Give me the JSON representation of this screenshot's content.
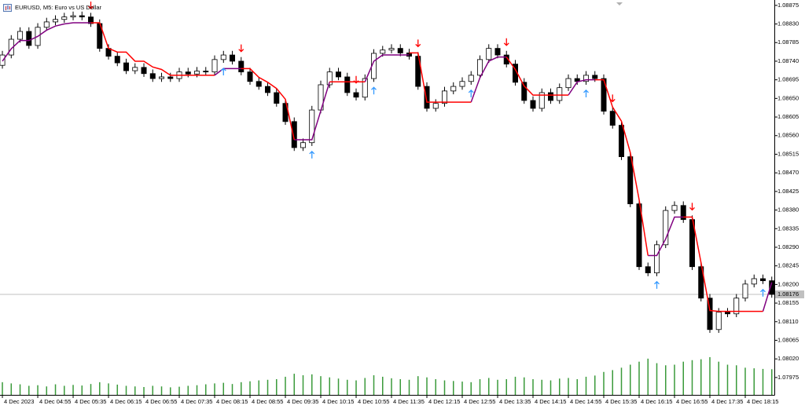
{
  "chart_data": {
    "type": "candlestick",
    "title": "EURUSD, M5: Euro vs US Dollar",
    "xlim": [
      -0.27,
      87.29
    ],
    "ylim": [
      1.07933,
      1.08888
    ],
    "grid": false,
    "xticks": [
      {
        "value": 0,
        "label": "4 Dec 2023"
      },
      {
        "value": 4,
        "label": "4 Dec 04:55"
      },
      {
        "value": 8,
        "label": "4 Dec 05:35"
      },
      {
        "value": 12,
        "label": "4 Dec 06:15"
      },
      {
        "value": 16,
        "label": "4 Dec 06:55"
      },
      {
        "value": 20,
        "label": "4 Dec 07:35"
      },
      {
        "value": 24,
        "label": "4 Dec 08:15"
      },
      {
        "value": 28,
        "label": "4 Dec 08:55"
      },
      {
        "value": 32,
        "label": "4 Dec 09:35"
      },
      {
        "value": 36,
        "label": "4 Dec 10:15"
      },
      {
        "value": 40,
        "label": "4 Dec 10:55"
      },
      {
        "value": 44,
        "label": "4 Dec 11:35"
      },
      {
        "value": 48,
        "label": "4 Dec 12:15"
      },
      {
        "value": 52,
        "label": "4 Dec 12:55"
      },
      {
        "value": 56,
        "label": "4 Dec 13:35"
      },
      {
        "value": 60,
        "label": "4 Dec 14:15"
      },
      {
        "value": 64,
        "label": "4 Dec 14:55"
      },
      {
        "value": 68,
        "label": "4 Dec 15:35"
      },
      {
        "value": 72,
        "label": "4 Dec 16:15"
      },
      {
        "value": 76,
        "label": "4 Dec 16:55"
      },
      {
        "value": 80,
        "label": "4 Dec 17:35"
      },
      {
        "value": 84,
        "label": "4 Dec 18:15"
      }
    ],
    "yticks": [
      {
        "value": 1.08875,
        "label": "1.08875"
      },
      {
        "value": 1.0883,
        "label": "1.08830"
      },
      {
        "value": 1.08785,
        "label": "1.08785"
      },
      {
        "value": 1.0874,
        "label": "1.08740"
      },
      {
        "value": 1.08695,
        "label": "1.08695"
      },
      {
        "value": 1.0865,
        "label": "1.08650"
      },
      {
        "value": 1.08605,
        "label": "1.08605"
      },
      {
        "value": 1.0856,
        "label": "1.08560"
      },
      {
        "value": 1.08515,
        "label": "1.08515"
      },
      {
        "value": 1.0847,
        "label": "1.08470"
      },
      {
        "value": 1.08425,
        "label": "1.08425"
      },
      {
        "value": 1.0838,
        "label": "1.08380"
      },
      {
        "value": 1.08335,
        "label": "1.08335"
      },
      {
        "value": 1.0829,
        "label": "1.08290"
      },
      {
        "value": 1.08245,
        "label": "1.08245"
      },
      {
        "value": 1.082,
        "label": "1.08200"
      },
      {
        "value": 1.08155,
        "label": "1.08155"
      },
      {
        "value": 1.0811,
        "label": "1.08110"
      },
      {
        "value": 1.08065,
        "label": "1.08065"
      },
      {
        "value": 1.0802,
        "label": "1.08020"
      },
      {
        "value": 1.07975,
        "label": "1.07975"
      }
    ],
    "candles": {
      "bull_color": "#ffffff",
      "bear_color": "#000000",
      "outline_color": "#000000",
      "open": [
        1.0873,
        1.08755,
        1.08793,
        1.08812,
        1.08778,
        1.08822,
        1.08835,
        1.08841,
        1.08847,
        1.0885,
        1.08847,
        1.08831,
        1.08771,
        1.08752,
        1.08736,
        1.08717,
        1.08725,
        1.0871,
        1.08698,
        1.08702,
        1.08698,
        1.08714,
        1.08709,
        1.08716,
        1.08714,
        1.08744,
        1.08755,
        1.0874,
        1.08714,
        1.08691,
        1.08679,
        1.08664,
        1.08638,
        1.08594,
        1.08531,
        1.08543,
        1.08622,
        1.08683,
        1.08714,
        1.08702,
        1.08664,
        1.08653,
        1.08698,
        1.08759,
        1.08767,
        1.08771,
        1.0876,
        1.08752,
        1.08679,
        1.08626,
        1.08638,
        1.08668,
        1.08679,
        1.08691,
        1.08706,
        1.08744,
        1.08771,
        1.08755,
        1.08733,
        1.08689,
        1.08645,
        1.08626,
        1.08664,
        1.08645,
        1.08676,
        1.08698,
        1.08691,
        1.08706,
        1.08698,
        1.08619,
        1.08585,
        1.08509,
        1.08395,
        1.08243,
        1.08228,
        1.08296,
        1.08379,
        1.08391,
        1.08357,
        1.08243,
        1.08167,
        1.08091,
        1.08133,
        1.08129,
        1.08167,
        1.08201,
        1.08214,
        1.08209
      ],
      "high": [
        1.08765,
        1.08803,
        1.08822,
        1.08822,
        1.08832,
        1.08845,
        1.08851,
        1.08857,
        1.0886,
        1.0886,
        1.08857,
        1.08841,
        1.08781,
        1.08762,
        1.08746,
        1.08735,
        1.08735,
        1.0872,
        1.08712,
        1.08712,
        1.08724,
        1.08724,
        1.08726,
        1.08726,
        1.08754,
        1.08765,
        1.08765,
        1.0875,
        1.08724,
        1.08701,
        1.08689,
        1.08674,
        1.08648,
        1.08604,
        1.08553,
        1.08632,
        1.08693,
        1.08724,
        1.08724,
        1.08712,
        1.08674,
        1.08708,
        1.08769,
        1.08777,
        1.08781,
        1.08781,
        1.0877,
        1.08762,
        1.08689,
        1.08648,
        1.08678,
        1.08689,
        1.08701,
        1.08716,
        1.08754,
        1.08781,
        1.08781,
        1.08765,
        1.08743,
        1.08699,
        1.08655,
        1.08674,
        1.08674,
        1.08686,
        1.08708,
        1.08708,
        1.08716,
        1.08716,
        1.08708,
        1.08629,
        1.08595,
        1.08519,
        1.08405,
        1.08253,
        1.08306,
        1.08389,
        1.08401,
        1.08401,
        1.08367,
        1.08253,
        1.08177,
        1.08143,
        1.08143,
        1.08177,
        1.08211,
        1.08224,
        1.08224,
        1.08219
      ],
      "low": [
        1.08722,
        1.08747,
        1.08785,
        1.0877,
        1.0877,
        1.08814,
        1.08827,
        1.08833,
        1.08839,
        1.08839,
        1.08823,
        1.08763,
        1.08744,
        1.08728,
        1.08709,
        1.08709,
        1.08702,
        1.0869,
        1.0869,
        1.0869,
        1.0869,
        1.08701,
        1.08701,
        1.08706,
        1.08706,
        1.08736,
        1.08732,
        1.08706,
        1.08683,
        1.08671,
        1.08656,
        1.0863,
        1.08586,
        1.08523,
        1.08523,
        1.08535,
        1.08614,
        1.08675,
        1.08694,
        1.08656,
        1.08645,
        1.08645,
        1.0869,
        1.08751,
        1.08759,
        1.08752,
        1.08744,
        1.08671,
        1.08618,
        1.08618,
        1.0863,
        1.0866,
        1.08671,
        1.08683,
        1.08698,
        1.08736,
        1.08747,
        1.08725,
        1.08681,
        1.08637,
        1.08618,
        1.08618,
        1.08637,
        1.08637,
        1.08668,
        1.08683,
        1.08683,
        1.0869,
        1.08611,
        1.08577,
        1.08501,
        1.08387,
        1.08235,
        1.0822,
        1.0822,
        1.08288,
        1.08371,
        1.08349,
        1.08235,
        1.08159,
        1.08083,
        1.08083,
        1.08121,
        1.08121,
        1.08159,
        1.08193,
        1.08201,
        1.08168
      ],
      "close": [
        1.08755,
        1.08793,
        1.08812,
        1.08778,
        1.08822,
        1.08835,
        1.08841,
        1.08847,
        1.0885,
        1.08847,
        1.08831,
        1.08771,
        1.08752,
        1.08736,
        1.08717,
        1.08725,
        1.0871,
        1.08698,
        1.08702,
        1.08698,
        1.08714,
        1.08709,
        1.08716,
        1.08714,
        1.08744,
        1.08755,
        1.0874,
        1.08714,
        1.08691,
        1.08679,
        1.08664,
        1.08638,
        1.08594,
        1.08531,
        1.08543,
        1.08622,
        1.08683,
        1.08714,
        1.08702,
        1.08664,
        1.08653,
        1.08698,
        1.08759,
        1.08767,
        1.08771,
        1.0876,
        1.08752,
        1.08679,
        1.08626,
        1.08638,
        1.08668,
        1.08679,
        1.08691,
        1.08706,
        1.08744,
        1.08771,
        1.08755,
        1.08733,
        1.08689,
        1.08645,
        1.08626,
        1.08664,
        1.08645,
        1.08676,
        1.08698,
        1.08691,
        1.08706,
        1.08698,
        1.08619,
        1.08585,
        1.08509,
        1.08395,
        1.08243,
        1.08228,
        1.08296,
        1.08379,
        1.08391,
        1.08357,
        1.08243,
        1.08167,
        1.08091,
        1.08133,
        1.08129,
        1.08167,
        1.08201,
        1.08214,
        1.08209,
        1.08176
      ]
    },
    "volume": {
      "color": "#3a9a3a",
      "lim": [
        0,
        1300
      ],
      "values": [
        420,
        380,
        350,
        300,
        320,
        280,
        350,
        300,
        330,
        310,
        360,
        420,
        380,
        340,
        300,
        280,
        260,
        300,
        280,
        250,
        270,
        300,
        320,
        350,
        380,
        400,
        360,
        420,
        450,
        480,
        500,
        520,
        600,
        700,
        650,
        680,
        620,
        580,
        540,
        500,
        480,
        560,
        650,
        600,
        550,
        520,
        500,
        620,
        580,
        520,
        480,
        460,
        440,
        420,
        520,
        560,
        500,
        520,
        600,
        580,
        520,
        500,
        480,
        540,
        560,
        520,
        600,
        640,
        760,
        820,
        900,
        1000,
        1100,
        1200,
        1050,
        980,
        1000,
        1100,
        1150,
        1180,
        1250,
        1100,
        1000,
        980,
        900,
        880,
        860,
        850
      ]
    },
    "series": [
      {
        "color": "#800080",
        "values": [
          1.0874,
          1.0877,
          1.0879,
          1.0879,
          1.088,
          1.08815,
          1.08825,
          1.0883,
          1.08833,
          1.08833,
          1.08833,
          null,
          null,
          null,
          null,
          null,
          null,
          null,
          null,
          null,
          null,
          null,
          null,
          null,
          1.08706,
          1.08722,
          1.08722,
          1.08722,
          null,
          null,
          null,
          null,
          null,
          1.0855,
          1.0855,
          1.0855,
          1.0862,
          1.0869,
          null,
          null,
          null,
          1.0869,
          1.0874,
          1.08755,
          1.08755,
          1.08755,
          1.08755,
          null,
          null,
          null,
          null,
          null,
          null,
          1.08641,
          1.087,
          1.0874,
          1.0875,
          1.0875,
          null,
          null,
          null,
          null,
          null,
          null,
          1.08658,
          1.0869,
          1.08695,
          1.08695,
          null,
          null,
          null,
          null,
          null,
          1.0827,
          1.0827,
          1.0831,
          1.08363,
          1.08363,
          null,
          null,
          null,
          null,
          null,
          null,
          null,
          null,
          1.08135,
          1.08205
        ]
      },
      {
        "color": "#ff0000",
        "values": [
          null,
          null,
          null,
          null,
          null,
          null,
          null,
          null,
          null,
          null,
          1.08833,
          1.08833,
          1.08771,
          1.08762,
          1.08762,
          1.0874,
          1.0874,
          1.08726,
          1.0872,
          1.08706,
          1.08706,
          1.08706,
          1.08706,
          1.08706,
          1.08706,
          null,
          null,
          1.08722,
          1.08722,
          1.08701,
          1.08689,
          1.08674,
          1.08648,
          1.0855,
          null,
          null,
          null,
          1.0869,
          1.0869,
          1.0869,
          1.0869,
          1.0869,
          null,
          null,
          null,
          null,
          1.0876,
          1.0876,
          1.08641,
          1.08641,
          1.08641,
          1.08641,
          1.08641,
          1.08641,
          null,
          null,
          null,
          1.0875,
          1.0872,
          1.0868,
          1.08658,
          1.08658,
          1.08658,
          1.08658,
          1.08658,
          null,
          null,
          1.08695,
          1.08695,
          1.08629,
          1.08595,
          1.08519,
          1.08405,
          1.0827,
          null,
          null,
          null,
          1.08363,
          1.08363,
          1.08253,
          1.08137,
          1.08135,
          1.08135,
          1.08135,
          1.08135,
          1.08135,
          1.08135,
          null
        ]
      }
    ],
    "signals": {
      "up_color": "#3399ff",
      "down_color": "#ff0000",
      "down": [
        10,
        27,
        40,
        47,
        57,
        69,
        78
      ],
      "up": [
        25,
        35,
        42,
        53,
        66,
        74,
        86
      ]
    },
    "last_price": {
      "value": 1.08176,
      "label": "1.08176",
      "color": "#c0c0c0"
    }
  }
}
